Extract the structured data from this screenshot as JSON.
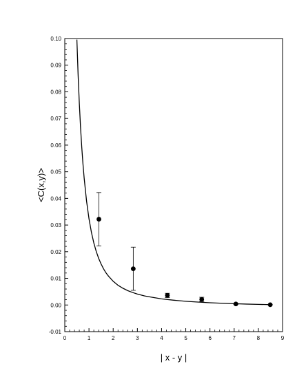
{
  "chart_data": {
    "type": "scatter",
    "xlabel": "| x - y |",
    "ylabel": "<C(x,y)>",
    "xlim": [
      0,
      9
    ],
    "ylim": [
      -0.01,
      0.1
    ],
    "x_ticks": [
      "0",
      "1",
      "2",
      "3",
      "4",
      "5",
      "6",
      "7",
      "8",
      "9"
    ],
    "y_ticks": [
      "-0.01",
      "0.00",
      "0.01",
      "0.02",
      "0.03",
      "0.04",
      "0.05",
      "0.06",
      "0.07",
      "0.08",
      "0.09",
      "0.10"
    ],
    "grid": false,
    "legend": "none",
    "points": [
      {
        "x": 1.41,
        "y": 0.0322,
        "err": 0.01
      },
      {
        "x": 2.83,
        "y": 0.0136,
        "err": 0.0081
      },
      {
        "x": 4.24,
        "y": 0.0036,
        "err": 0.0008
      },
      {
        "x": 5.66,
        "y": 0.0021,
        "err": 0.0008
      },
      {
        "x": 7.07,
        "y": 0.0004,
        "err": 0.0002
      },
      {
        "x": 8.49,
        "y": 0.0001,
        "err": 0.0001
      }
    ],
    "curve": {
      "x": [
        0.5,
        0.55,
        0.6,
        0.65,
        0.7,
        0.75,
        0.8,
        0.9,
        1.0,
        1.1,
        1.2,
        1.3,
        1.4,
        1.5,
        1.6,
        1.7,
        1.8,
        2.0,
        2.2,
        2.4,
        2.6,
        2.8,
        3.0,
        3.3,
        3.6,
        4.0,
        4.5,
        5.0,
        5.5,
        6.0,
        6.5,
        7.0,
        7.5,
        8.0,
        8.5
      ],
      "y": [
        0.0996,
        0.0866,
        0.0758,
        0.0669,
        0.0594,
        0.0531,
        0.0477,
        0.039,
        0.0324,
        0.0273,
        0.0233,
        0.0201,
        0.0175,
        0.0154,
        0.0136,
        0.0121,
        0.0109,
        0.0089,
        0.0074,
        0.0063,
        0.0054,
        0.0047,
        0.0041,
        0.0034,
        0.0029,
        0.0023,
        0.0018,
        0.0014,
        0.0011,
        0.00085,
        0.00065,
        0.00049,
        0.00035,
        0.00023,
        0.00013
      ]
    },
    "colors": {
      "ink": "#000000",
      "background": "#ffffff"
    }
  }
}
